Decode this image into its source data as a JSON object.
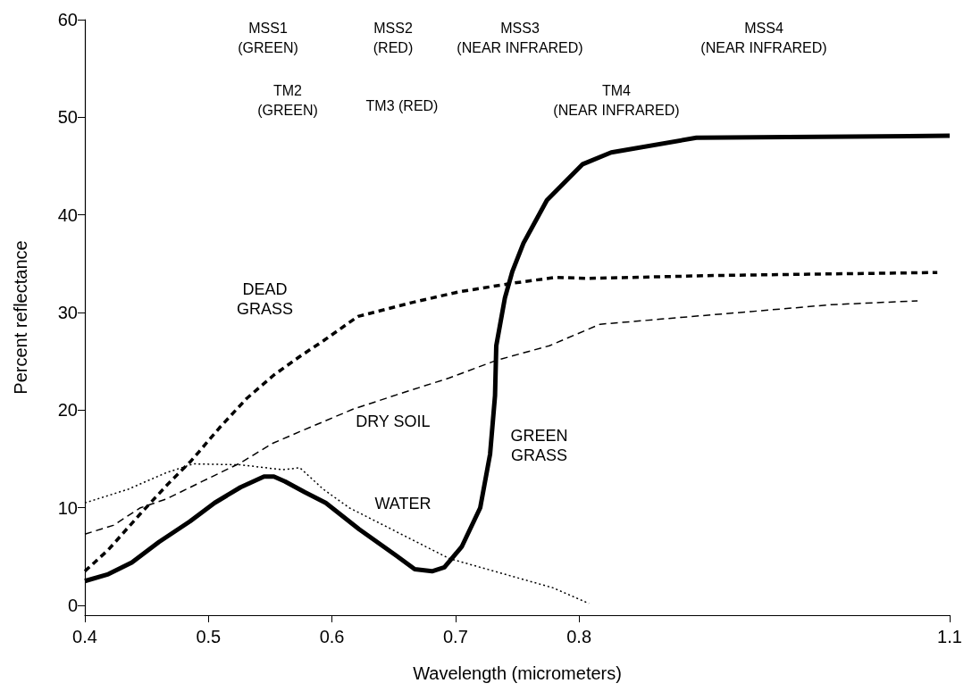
{
  "chart_data": {
    "type": "line",
    "xlabel": "Wavelength (micrometers)",
    "ylabel": "Percent reflectance",
    "xlim": [
      0.4,
      1.1
    ],
    "xticks": [
      0.4,
      0.5,
      0.6,
      0.7,
      0.8,
      1.1
    ],
    "ylim": [
      -1,
      60
    ],
    "yticks": [
      0,
      10,
      20,
      30,
      40,
      50,
      60
    ],
    "grid": false,
    "marker": "none",
    "series": [
      {
        "name": "GREEN\nGRASS",
        "color": "#000000",
        "line_style": "solid",
        "x": [
          0.4,
          0.419,
          0.438,
          0.46,
          0.485,
          0.505,
          0.526,
          0.545,
          0.553,
          0.562,
          0.578,
          0.595,
          0.622,
          0.652,
          0.667,
          0.681,
          0.691,
          0.705,
          0.72,
          0.728,
          0.732,
          0.733,
          0.74,
          0.746,
          0.755,
          0.774,
          0.803,
          0.826,
          0.895,
          1.1
        ],
        "values": [
          2.5,
          3.2,
          4.4,
          6.5,
          8.6,
          10.5,
          12.1,
          13.2,
          13.2,
          12.7,
          11.6,
          10.5,
          7.8,
          5.1,
          3.7,
          3.5,
          3.9,
          6.0,
          10.0,
          15.5,
          21.5,
          26.6,
          31.5,
          34.2,
          37.1,
          41.5,
          45.2,
          46.4,
          47.9,
          48.1
        ]
      },
      {
        "name": "DEAD\nGRASS",
        "color": "#000000",
        "line_style": "dashed",
        "x": [
          0.4,
          0.419,
          0.445,
          0.467,
          0.486,
          0.509,
          0.531,
          0.553,
          0.574,
          0.593,
          0.621,
          0.664,
          0.702,
          0.746,
          0.781,
          0.808,
          0.912,
          1.09
        ],
        "values": [
          3.5,
          5.7,
          9.4,
          12.4,
          14.8,
          18.2,
          21.2,
          23.6,
          25.5,
          27.1,
          29.6,
          31.0,
          32.1,
          33.0,
          33.6,
          33.5,
          33.8,
          34.1
        ]
      },
      {
        "name": "DRY SOIL",
        "color": "#000000",
        "line_style": "dashed",
        "x": [
          0.4,
          0.423,
          0.445,
          0.466,
          0.495,
          0.526,
          0.552,
          0.574,
          0.617,
          0.653,
          0.695,
          0.733,
          0.776,
          0.817,
          0.939,
          1.004,
          1.074
        ],
        "values": [
          7.3,
          8.2,
          10.0,
          10.9,
          12.7,
          14.6,
          16.6,
          17.8,
          20.1,
          21.6,
          23.3,
          25.1,
          26.6,
          28.8,
          30.1,
          30.8,
          31.2
        ]
      },
      {
        "name": "WATER",
        "color": "#000000",
        "line_style": "dotted",
        "x": [
          0.4,
          0.435,
          0.466,
          0.488,
          0.526,
          0.56,
          0.574,
          0.593,
          0.614,
          0.695,
          0.779,
          0.808
        ],
        "values": [
          10.5,
          11.9,
          13.6,
          14.5,
          14.4,
          13.9,
          14.1,
          11.9,
          10.0,
          4.8,
          1.8,
          0.2
        ]
      }
    ],
    "annotations": [
      "MSS1\n(GREEN)",
      "MSS2\n(RED)",
      "MSS3\n(NEAR INFRARED)",
      "MSS4\n(NEAR INFRARED)",
      "TM2\n(GREEN)",
      "TM3 (RED)",
      "TM4\n(NEAR INFRARED)"
    ]
  }
}
